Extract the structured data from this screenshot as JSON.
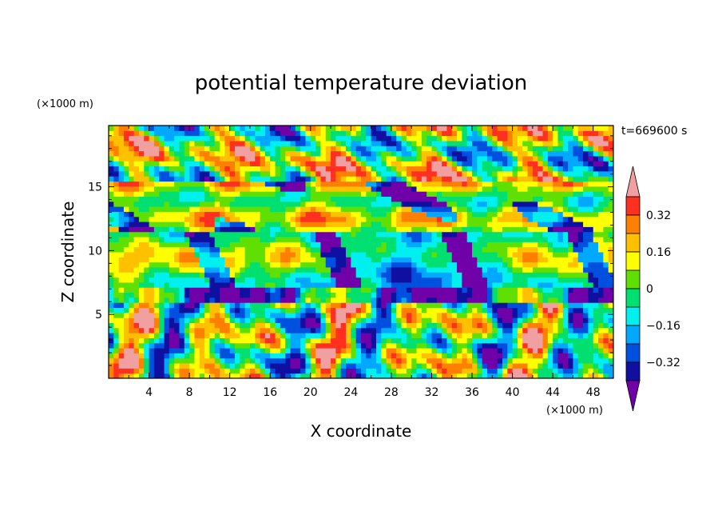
{
  "chart_data": {
    "type": "heatmap",
    "title": "potential temperature deviation",
    "xlabel": "X coordinate",
    "ylabel": "Z coordinate",
    "x_unit": "(×1000 m)",
    "y_unit": "(×1000 m)",
    "time_label": "t=669600 s",
    "xlim": [
      0,
      50
    ],
    "ylim": [
      0,
      19.8
    ],
    "x_ticks": [
      4,
      8,
      12,
      16,
      20,
      24,
      28,
      32,
      36,
      40,
      44,
      48
    ],
    "y_ticks": [
      5,
      10,
      15
    ],
    "colorbar": {
      "levels": [
        -0.48,
        -0.4,
        -0.32,
        -0.24,
        -0.16,
        -0.08,
        0,
        0.08,
        0.16,
        0.24,
        0.32,
        0.4
      ],
      "labels": [
        "-0.32",
        "-0.16",
        "0",
        "0.16",
        "0.32"
      ],
      "label_values": [
        -0.32,
        -0.16,
        0,
        0.16,
        0.32
      ],
      "colors": [
        "#7000a8",
        "#1010a0",
        "#0050e0",
        "#00a8ff",
        "#00f0f0",
        "#00e070",
        "#60e000",
        "#ffff00",
        "#ffc000",
        "#ff8000",
        "#ff3020",
        "#f0a0a0"
      ],
      "extend": "both"
    }
  }
}
